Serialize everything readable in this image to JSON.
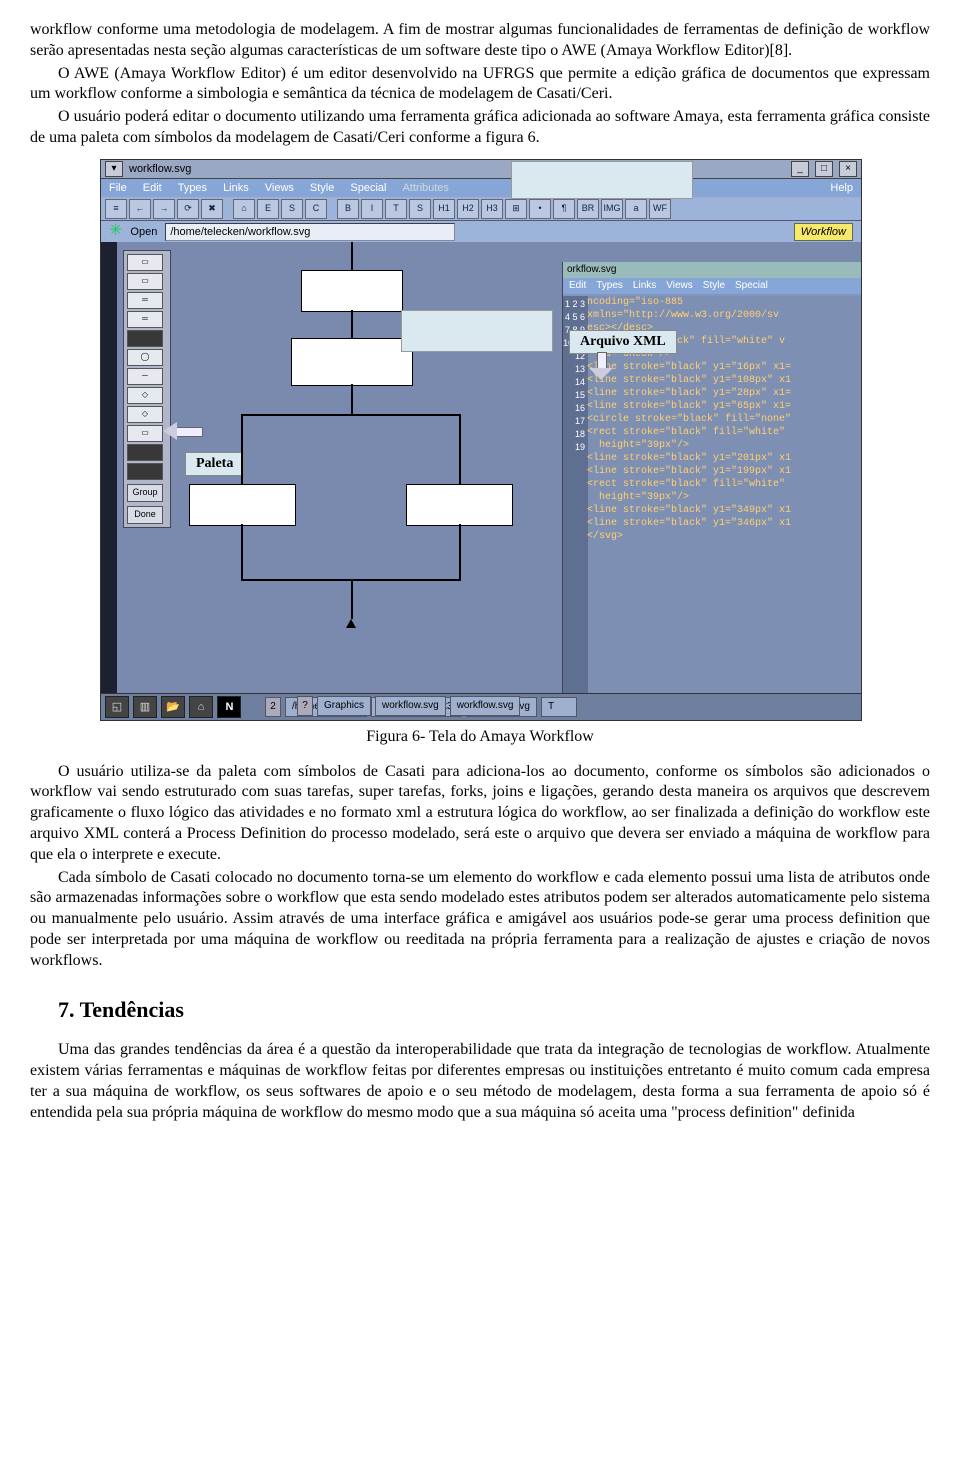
{
  "para1": "workflow conforme uma metodologia de modelagem. A fim de mostrar algumas funcionalidades de ferramentas de definição de workflow serão apresentadas nesta seção algumas características de um software deste tipo o AWE (Amaya Workflow Editor)[8].",
  "para2": "O AWE (Amaya Workflow Editor) é um editor desenvolvido na UFRGS que permite a edição gráfica de documentos que expressam um workflow conforme a simbologia e semântica da técnica de modelagem de Casati/Ceri.",
  "para3": "O usuário poderá editar o documento utilizando uma ferramenta gráfica adicionada ao software Amaya, esta ferramenta gráfica consiste de uma paleta com símbolos da modelagem de Casati/Ceri conforme a figura 6.",
  "figureCaption": "Figura 6- Tela do Amaya Workflow",
  "para4": "O usuário utiliza-se da paleta com símbolos de Casati para adiciona-los ao documento, conforme os símbolos são adicionados  o workflow vai sendo estruturado com suas tarefas, super tarefas, forks, joins e  ligações, gerando desta maneira os arquivos que descrevem graficamente o fluxo lógico das atividades e no formato xml a estrutura lógica do workflow, ao ser finalizada a definição do workflow este arquivo XML conterá a Process Definition do processo modelado, será este o arquivo que devera ser enviado a máquina de workflow para que ela o interprete e execute.",
  "para5": "Cada símbolo de Casati colocado no documento torna-se um elemento do workflow e cada elemento possui uma lista de atributos onde são armazenadas informações sobre o workflow que esta sendo modelado estes atributos podem ser alterados automaticamente pelo sistema ou manualmente pelo usuário. Assim através de uma interface gráfica e amigável aos usuários pode-se gerar uma process definition que pode ser interpretada por uma máquina de workflow ou reeditada na própria ferramenta para a realização de ajustes e criação de novos workflows.",
  "sectionTitle": "7. Tendências",
  "para6": "Uma das grandes tendências da área é a questão da interoperabilidade que trata da integração de tecnologias de workflow. Atualmente existem várias ferramentas e máquinas de workflow feitas por diferentes empresas ou instituições entretanto é muito comum cada empresa ter a sua máquina de workflow, os seus softwares de apoio e o seu método de modelagem, desta forma a sua ferramenta de apoio só é entendida pela sua própria máquina de workflow do mesmo modo que a sua máquina só aceita uma \"process definition\" definida",
  "shot": {
    "windowTitle": "workflow.svg",
    "menus": [
      "File",
      "Edit",
      "Types",
      "Links",
      "Views",
      "Style",
      "Special",
      "Attributes",
      "Help"
    ],
    "toolbarIcons": [
      "≡",
      "←",
      "→",
      "⟳",
      "✖",
      "⌂",
      "E",
      "S",
      "C",
      "B",
      "I",
      "T",
      "S",
      "H1",
      "H2",
      "H3",
      "⊞",
      "•",
      "¶",
      "BR",
      "IMG",
      "a",
      "WF"
    ],
    "openLabel": "Open",
    "url": "/home/telecken/workflow.svg",
    "workflowBadge": "Workflow",
    "palette": {
      "groupLabel": "Group",
      "doneLabel": "Done"
    },
    "tags": {
      "paleta": "Paleta",
      "arquivoXml": "Arquivo XML"
    },
    "xml": {
      "titlebar": "orkflow.svg",
      "menus": [
        "Edit",
        "Types",
        "Links",
        "Views",
        "Style",
        "Special"
      ],
      "lines": [
        "ncoding=\"iso-885",
        "xmlns=\"http://www.w3.org/2000/sv",
        "esc></desc>",
        "ect stroke=\"black\" fill=\"white\" v",
        "  id=\"Check\"/>",
        "<line stroke=\"black\" y1=\"16px\" x1=",
        "<line stroke=\"black\" y1=\"108px\" x1",
        "<line stroke=\"black\" y1=\"28px\" x1=",
        "<line stroke=\"black\" y1=\"65px\" x1=",
        "<circle stroke=\"black\" fill=\"none\"",
        "<rect stroke=\"black\" fill=\"white\" ",
        "  height=\"39px\"/>",
        "<line stroke=\"black\" y1=\"201px\" x1",
        "<line stroke=\"black\" y1=\"199px\" x1",
        "<rect stroke=\"black\" fill=\"white\" ",
        "  height=\"39px\"/>",
        "<line stroke=\"black\" y1=\"349px\" x1",
        "<line stroke=\"black\" y1=\"346px\" x1",
        "</svg>"
      ],
      "lineStart": 1
    },
    "taskbar": {
      "slots": [
        "/home/telecken",
        "telecken@cemt3:",
        "workflow.svg"
      ],
      "slots2": [
        "Graphics",
        "workflow.svg",
        "workflow.svg"
      ],
      "num1": "2",
      "num2": "?",
      "tLab": "T"
    }
  }
}
